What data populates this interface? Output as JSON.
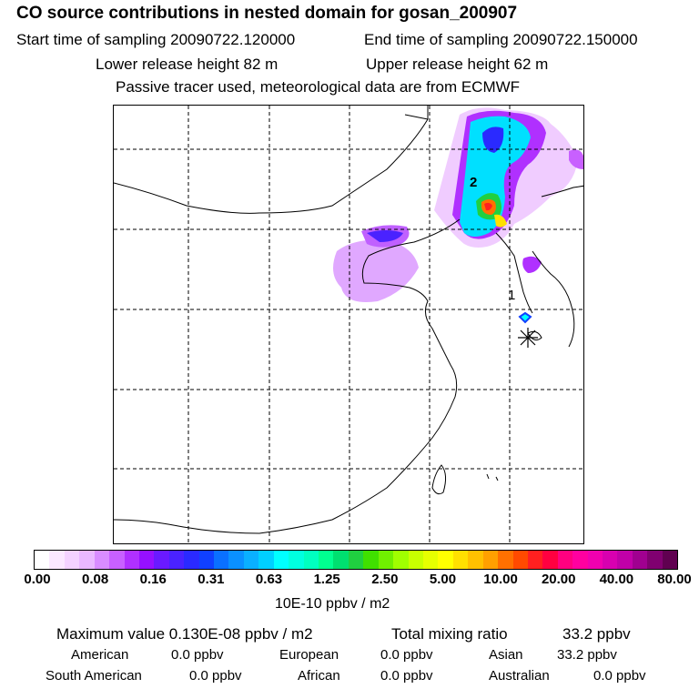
{
  "header": {
    "title": "CO  source contributions in nested domain for gosan_200907",
    "start_label": "Start time of sampling 20090722.120000",
    "end_label": "End time of sampling 20090722.150000",
    "lower_label": "Lower release height   82 m",
    "upper_label": "Upper release height   62 m",
    "note": "Passive tracer used, meteorological data are from ECMWF"
  },
  "map": {
    "markers": [
      "1",
      "2"
    ]
  },
  "colorbar": {
    "ticks": [
      "0.00",
      "0.08",
      "0.16",
      "0.31",
      "0.63",
      "1.25",
      "2.50",
      "5.00",
      "10.00",
      "20.00",
      "40.00",
      "80.00"
    ],
    "colors": [
      "#ffffff",
      "#fbe8ff",
      "#f4d2ff",
      "#eab8ff",
      "#d98cff",
      "#c860ff",
      "#b030ff",
      "#9610ff",
      "#6a1aff",
      "#4a22ff",
      "#2a2aff",
      "#1040ff",
      "#0a70ff",
      "#0a90ff",
      "#0ab0ff",
      "#00d0ff",
      "#00ffff",
      "#00ffe0",
      "#00ffc0",
      "#00ff90",
      "#00e070",
      "#20d040",
      "#40e000",
      "#70f000",
      "#a0ff00",
      "#c8ff00",
      "#e6ff00",
      "#ffff00",
      "#ffe000",
      "#ffc000",
      "#ffa000",
      "#ff7000",
      "#ff4a00",
      "#ff2020",
      "#ff0040",
      "#ff0080",
      "#ff00a0",
      "#f000b0",
      "#d800b0",
      "#c000a8",
      "#a00090",
      "#800070",
      "#600050"
    ],
    "units": "10E-10 ppbv / m2"
  },
  "summary": {
    "max_label": "Maximum value  0.130E-08 ppbv / m2",
    "total_label": "Total mixing ratio",
    "total_value": "33.2 ppbv"
  },
  "regions": [
    {
      "name": "American",
      "value": "0.0 ppbv"
    },
    {
      "name": "European",
      "value": "0.0 ppbv"
    },
    {
      "name": "Asian",
      "value": "33.2 ppbv"
    },
    {
      "name": "South American",
      "value": "0.0 ppbv"
    },
    {
      "name": "African",
      "value": "0.0 ppbv"
    },
    {
      "name": "Australian",
      "value": "0.0 ppbv"
    }
  ]
}
